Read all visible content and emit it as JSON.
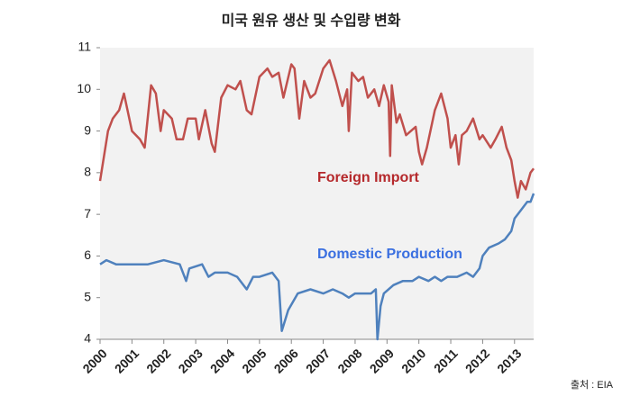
{
  "chart_data": {
    "type": "line",
    "title": "미국 원유 생산 및 수입량 변화",
    "source": "출처 : EIA",
    "xlim": [
      2000,
      2013.6
    ],
    "xticks": [
      2000,
      2001,
      2002,
      2003,
      2004,
      2005,
      2006,
      2007,
      2008,
      2009,
      2010,
      2011,
      2012,
      2013
    ],
    "ylim": [
      4,
      11
    ],
    "yticks": [
      4,
      5,
      6,
      7,
      8,
      9,
      10,
      11
    ],
    "annotations": [
      {
        "text": "Foreign Import",
        "color": "#b5282b"
      },
      {
        "text": "Domestic Production",
        "color": "#3a6fe0"
      }
    ],
    "series": [
      {
        "name": "Foreign Import",
        "color": "#c0504d",
        "x": [
          2000.0,
          2000.25,
          2000.4,
          2000.6,
          2000.75,
          2001.0,
          2001.25,
          2001.4,
          2001.6,
          2001.75,
          2001.9,
          2002.0,
          2002.25,
          2002.4,
          2002.6,
          2002.75,
          2003.0,
          2003.1,
          2003.3,
          2003.5,
          2003.6,
          2003.8,
          2004.0,
          2004.25,
          2004.4,
          2004.6,
          2004.75,
          2005.0,
          2005.25,
          2005.4,
          2005.6,
          2005.75,
          2006.0,
          2006.1,
          2006.25,
          2006.4,
          2006.6,
          2006.75,
          2007.0,
          2007.2,
          2007.4,
          2007.6,
          2007.75,
          2007.8,
          2007.9,
          2008.1,
          2008.25,
          2008.4,
          2008.6,
          2008.75,
          2008.9,
          2009.05,
          2009.1,
          2009.15,
          2009.3,
          2009.4,
          2009.6,
          2009.75,
          2009.9,
          2010.0,
          2010.1,
          2010.25,
          2010.5,
          2010.7,
          2010.9,
          2011.0,
          2011.15,
          2011.25,
          2011.35,
          2011.5,
          2011.7,
          2011.9,
          2012.0,
          2012.25,
          2012.4,
          2012.6,
          2012.75,
          2012.9,
          2013.0,
          2013.1,
          2013.2,
          2013.35,
          2013.5,
          2013.6
        ],
        "values": [
          7.8,
          9.0,
          9.3,
          9.5,
          9.9,
          9.0,
          8.8,
          8.6,
          10.1,
          9.9,
          9.0,
          9.5,
          9.3,
          8.8,
          8.8,
          9.3,
          9.3,
          8.8,
          9.5,
          8.7,
          8.5,
          9.8,
          10.1,
          10.0,
          10.2,
          9.5,
          9.4,
          10.3,
          10.5,
          10.3,
          10.4,
          9.8,
          10.6,
          10.5,
          9.3,
          10.2,
          9.8,
          9.9,
          10.5,
          10.7,
          10.2,
          9.6,
          10.0,
          9.0,
          10.4,
          10.2,
          10.3,
          9.8,
          10.0,
          9.6,
          10.1,
          9.7,
          8.4,
          10.1,
          9.2,
          9.4,
          8.9,
          9.0,
          9.1,
          8.5,
          8.2,
          8.6,
          9.5,
          9.9,
          9.3,
          8.6,
          8.9,
          8.2,
          8.9,
          9.0,
          9.3,
          8.8,
          8.9,
          8.6,
          8.8,
          9.1,
          8.6,
          8.3,
          7.8,
          7.4,
          7.8,
          7.6,
          8.0,
          8.1
        ]
      },
      {
        "name": "Domestic Production",
        "color": "#4f81bd",
        "x": [
          2000.0,
          2000.2,
          2000.5,
          2001.0,
          2001.5,
          2002.0,
          2002.5,
          2002.7,
          2002.8,
          2003.2,
          2003.4,
          2003.6,
          2004.0,
          2004.3,
          2004.6,
          2004.8,
          2005.0,
          2005.4,
          2005.6,
          2005.7,
          2005.9,
          2006.2,
          2006.6,
          2007.0,
          2007.3,
          2007.6,
          2007.8,
          2008.0,
          2008.3,
          2008.5,
          2008.65,
          2008.7,
          2008.8,
          2008.9,
          2009.2,
          2009.5,
          2009.8,
          2010.0,
          2010.3,
          2010.5,
          2010.7,
          2010.9,
          2011.2,
          2011.5,
          2011.7,
          2011.9,
          2012.0,
          2012.2,
          2012.5,
          2012.7,
          2012.9,
          2013.0,
          2013.2,
          2013.4,
          2013.5,
          2013.6
        ],
        "values": [
          5.8,
          5.9,
          5.8,
          5.8,
          5.8,
          5.9,
          5.8,
          5.4,
          5.7,
          5.8,
          5.5,
          5.6,
          5.6,
          5.5,
          5.2,
          5.5,
          5.5,
          5.6,
          5.4,
          4.2,
          4.7,
          5.1,
          5.2,
          5.1,
          5.2,
          5.1,
          5.0,
          5.1,
          5.1,
          5.1,
          5.2,
          4.0,
          4.8,
          5.1,
          5.3,
          5.4,
          5.4,
          5.5,
          5.4,
          5.5,
          5.4,
          5.5,
          5.5,
          5.6,
          5.5,
          5.7,
          6.0,
          6.2,
          6.3,
          6.4,
          6.6,
          6.9,
          7.1,
          7.3,
          7.3,
          7.5
        ]
      }
    ]
  }
}
